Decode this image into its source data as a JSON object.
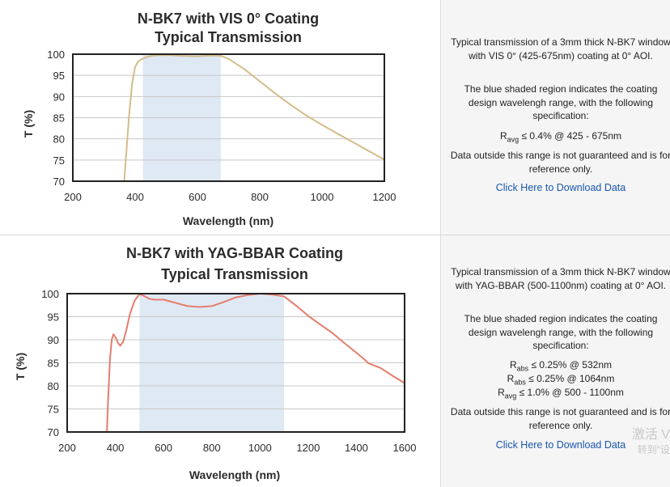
{
  "charts": [
    {
      "description": {
        "line1": "Typical transmission of a 3mm thick N-BK7 window with VIS 0° (425-675nm) coating at 0° AOI.",
        "line2": "The blue shaded region indicates the coating design wavelengh range, with the following specification:",
        "specs": [
          {
            "prefix": "R",
            "sub": "avg",
            "text": " ≤ 0.4% @ 425 - 675nm"
          }
        ],
        "line3": "Data outside this range is not guaranteed and is for reference only.",
        "download": "Click Here to Download Data"
      }
    },
    {
      "description": {
        "line1": "Typical transmission of a 3mm thick N-BK7 window with YAG-BBAR (500-1100nm) coating at 0° AOI.",
        "line2": "The blue shaded region indicates the coating design wavelengh range, with the following specification:",
        "specs": [
          {
            "prefix": "R",
            "sub": "abs",
            "text": " ≤ 0.25% @ 532nm"
          },
          {
            "prefix": "R",
            "sub": "abs",
            "text": " ≤ 0.25% @ 1064nm"
          },
          {
            "prefix": "R",
            "sub": "avg",
            "text": " ≤ 1.0% @ 500 - 1100nm"
          }
        ],
        "line3": "Data outside this range is not guaranteed and is for reference only.",
        "download": "Click Here to Download Data"
      }
    }
  ],
  "watermark": {
    "line1": "激活 V",
    "line2": "转到\"设"
  },
  "chart_data": [
    {
      "type": "line",
      "title": "N-BK7 with VIS 0° Coating",
      "subtitle": "Typical Transmission",
      "xlabel": "Wavelength (nm)",
      "ylabel": "T (%)",
      "xlim": [
        200,
        1200
      ],
      "ylim": [
        70,
        100
      ],
      "xticks": [
        200,
        400,
        600,
        800,
        1000,
        1200
      ],
      "yticks": [
        70,
        75,
        80,
        85,
        90,
        95,
        100
      ],
      "grid": "horizontal",
      "shaded_region": [
        425,
        675
      ],
      "line_color": "#d4bc8c",
      "shade_color": "#dfe9f4",
      "x": [
        365,
        372,
        380,
        390,
        400,
        410,
        420,
        430,
        440,
        460,
        500,
        550,
        600,
        650,
        675,
        700,
        750,
        800,
        850,
        900,
        950,
        1000,
        1050,
        1100,
        1150,
        1200
      ],
      "y": [
        70,
        77,
        85,
        93,
        97,
        98.3,
        98.8,
        99.1,
        99.4,
        99.7,
        99.8,
        99.6,
        99.5,
        99.7,
        99.6,
        98.9,
        96.5,
        93.6,
        90.7,
        88.0,
        85.5,
        83.3,
        81.2,
        79.2,
        77.1,
        75.1
      ]
    },
    {
      "type": "line",
      "title": "N-BK7 with YAG-BBAR Coating",
      "subtitle": "Typical Transmission",
      "xlabel": "Wavelength (nm)",
      "ylabel": "T (%)",
      "xlim": [
        200,
        1600
      ],
      "ylim": [
        70,
        100
      ],
      "xticks": [
        200,
        400,
        600,
        800,
        1000,
        1200,
        1400,
        1600
      ],
      "yticks": [
        70,
        75,
        80,
        85,
        90,
        95,
        100
      ],
      "grid": "horizontal",
      "shaded_region": [
        500,
        1100
      ],
      "line_color": "#e47d6e",
      "shade_color": "#dfe9f4",
      "x": [
        365,
        370,
        378,
        385,
        392,
        400,
        410,
        420,
        432,
        445,
        460,
        480,
        500,
        520,
        540,
        560,
        600,
        650,
        700,
        750,
        800,
        850,
        900,
        950,
        1000,
        1050,
        1100,
        1150,
        1200,
        1250,
        1300,
        1350,
        1400,
        1430,
        1450,
        1500,
        1550,
        1600
      ],
      "y": [
        70,
        77,
        86,
        90,
        91.2,
        90.6,
        89.4,
        88.7,
        89.5,
        92,
        95.5,
        98.5,
        99.9,
        99.5,
        98.9,
        98.7,
        98.7,
        98.0,
        97.3,
        97.1,
        97.3,
        98.2,
        99.2,
        99.7,
        100,
        99.8,
        99.4,
        97.4,
        95.2,
        93.3,
        91.5,
        89.3,
        87.2,
        85.9,
        84.9,
        83.9,
        82.2,
        80.6
      ]
    }
  ]
}
